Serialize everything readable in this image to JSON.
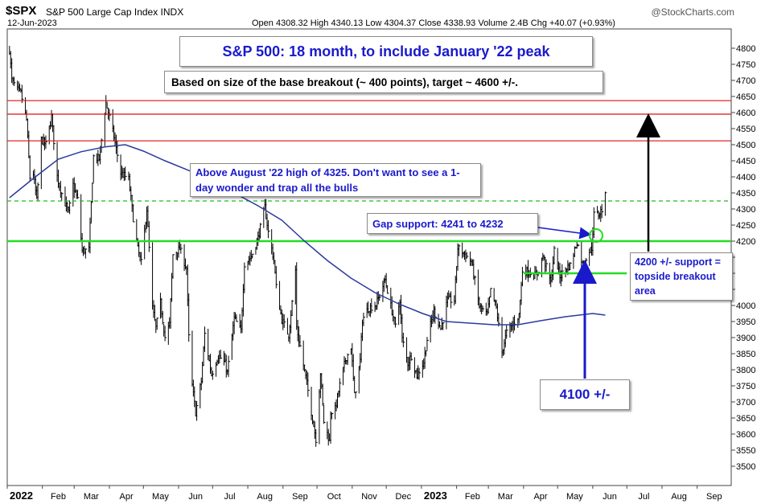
{
  "header": {
    "symbol": "$SPX",
    "name": "S&P 500 Large Cap Index  INDX",
    "date": "12-Jun-2023",
    "ohlc": "Open 4308.32  High 4340.13  Low 4304.37  Close 4338.93  Volume 2.4B  Chg +40.07 (+0.93%)",
    "brand": "@StockCharts.com"
  },
  "annotations": {
    "title": "S&P 500: 18 month, to include January '22 peak",
    "target": "Based on size of the base breakout (~ 400 points), target ~ 4600 +/-.",
    "august": "Above August '22 high of 4325. Don't want to see a 1-day wonder and trap all the bulls",
    "gap": "Gap support: 4241 to 4232",
    "support_4100": "4100 +/-",
    "support_4200": "4200 +/-  support = topside breakout area"
  },
  "colors": {
    "bars": "#000000",
    "moving_average": "#2b3a9e",
    "resistance": "#dd1111",
    "support": "#22dd22",
    "prior_high": "#22bb22",
    "annotation_text": "#1a1acc",
    "arrow_blue": "#1a1acc",
    "arrow_black": "#000000"
  },
  "chart_data": {
    "type": "ohlc",
    "xlabel": "",
    "ylabel": "",
    "ylim": [
      3440,
      4860
    ],
    "yticks": [
      3500,
      3550,
      3600,
      3650,
      3700,
      3750,
      3800,
      3850,
      3900,
      3950,
      4000,
      4050,
      4100,
      4150,
      4200,
      4250,
      4300,
      4350,
      4400,
      4450,
      4500,
      4550,
      4600,
      4650,
      4700,
      4750,
      4800
    ],
    "ytick_labels": [
      "3500",
      "3550",
      "3600",
      "3650",
      "3700",
      "3750",
      "3800",
      "3850",
      "3900",
      "3950",
      "4000",
      "",
      "",
      "",
      "4200",
      "4250",
      "4300",
      "4350",
      "4400",
      "4450",
      "4500",
      "4550",
      "4600",
      "4650",
      "4700",
      "4750",
      "4800"
    ],
    "xtick_labels": [
      "2022",
      "Feb",
      "Mar",
      "Apr",
      "May",
      "Jun",
      "Jul",
      "Aug",
      "Sep",
      "Oct",
      "Nov",
      "Dec",
      "2023",
      "Feb",
      "Mar",
      "Apr",
      "May",
      "Jun",
      "Jul",
      "Aug",
      "Sep"
    ],
    "xtick_bold": [
      "2022",
      "2023"
    ],
    "grid": false,
    "horizontal_lines": [
      {
        "value": 4637,
        "style": "solid",
        "color": "resistance"
      },
      {
        "value": 4595,
        "style": "solid",
        "color": "resistance"
      },
      {
        "value": 4512,
        "style": "solid",
        "color": "resistance"
      },
      {
        "value": 4325,
        "style": "dashed",
        "color": "prior_high"
      },
      {
        "value": 4200,
        "style": "solid",
        "color": "support"
      }
    ],
    "support_segment": {
      "value": 4100,
      "from": "2023-04-01",
      "to": "2023-07-01"
    },
    "series": [
      {
        "type": "close",
        "points": [
          [
            "2022-01-03",
            4796
          ],
          [
            "2022-01-05",
            4700
          ],
          [
            "2022-01-10",
            4670
          ],
          [
            "2022-01-13",
            4660
          ],
          [
            "2022-01-18",
            4577
          ],
          [
            "2022-01-21",
            4398
          ],
          [
            "2022-01-24",
            4410
          ],
          [
            "2022-01-27",
            4326
          ],
          [
            "2022-01-31",
            4516
          ],
          [
            "2022-02-04",
            4500
          ],
          [
            "2022-02-09",
            4587
          ],
          [
            "2022-02-14",
            4401
          ],
          [
            "2022-02-18",
            4348
          ],
          [
            "2022-02-24",
            4288
          ],
          [
            "2022-02-28",
            4374
          ],
          [
            "2022-03-04",
            4329
          ],
          [
            "2022-03-08",
            4170
          ],
          [
            "2022-03-14",
            4173
          ],
          [
            "2022-03-18",
            4463
          ],
          [
            "2022-03-23",
            4456
          ],
          [
            "2022-03-29",
            4631
          ],
          [
            "2022-04-05",
            4525
          ],
          [
            "2022-04-11",
            4412
          ],
          [
            "2022-04-18",
            4392
          ],
          [
            "2022-04-22",
            4272
          ],
          [
            "2022-04-26",
            4175
          ],
          [
            "2022-04-29",
            4132
          ],
          [
            "2022-05-04",
            4300
          ],
          [
            "2022-05-09",
            3991
          ],
          [
            "2022-05-12",
            3930
          ],
          [
            "2022-05-16",
            4008
          ],
          [
            "2022-05-20",
            3901
          ],
          [
            "2022-05-24",
            3941
          ],
          [
            "2022-05-27",
            4158
          ],
          [
            "2022-06-02",
            4176
          ],
          [
            "2022-06-08",
            4115
          ],
          [
            "2022-06-10",
            3901
          ],
          [
            "2022-06-13",
            3750
          ],
          [
            "2022-06-16",
            3667
          ],
          [
            "2022-06-21",
            3765
          ],
          [
            "2022-06-24",
            3911
          ],
          [
            "2022-06-30",
            3785
          ],
          [
            "2022-07-06",
            3845
          ],
          [
            "2022-07-12",
            3819
          ],
          [
            "2022-07-14",
            3791
          ],
          [
            "2022-07-20",
            3960
          ],
          [
            "2022-07-26",
            3921
          ],
          [
            "2022-07-29",
            4130
          ],
          [
            "2022-08-04",
            4152
          ],
          [
            "2022-08-10",
            4210
          ],
          [
            "2022-08-16",
            4305
          ],
          [
            "2022-08-19",
            4228
          ],
          [
            "2022-08-24",
            4141
          ],
          [
            "2022-08-26",
            4057
          ],
          [
            "2022-08-31",
            3955
          ],
          [
            "2022-09-06",
            3908
          ],
          [
            "2022-09-12",
            4110
          ],
          [
            "2022-09-13",
            3932
          ],
          [
            "2022-09-16",
            3873
          ],
          [
            "2022-09-22",
            3757
          ],
          [
            "2022-09-27",
            3647
          ],
          [
            "2022-09-30",
            3585
          ],
          [
            "2022-10-04",
            3791
          ],
          [
            "2022-10-07",
            3639
          ],
          [
            "2022-10-12",
            3577
          ],
          [
            "2022-10-13",
            3669
          ],
          [
            "2022-10-17",
            3677
          ],
          [
            "2022-10-21",
            3752
          ],
          [
            "2022-10-26",
            3831
          ],
          [
            "2022-10-31",
            3872
          ],
          [
            "2022-11-03",
            3719
          ],
          [
            "2022-11-08",
            3828
          ],
          [
            "2022-11-10",
            3956
          ],
          [
            "2022-11-15",
            3991
          ],
          [
            "2022-11-22",
            4003
          ],
          [
            "2022-11-30",
            4080
          ],
          [
            "2022-12-05",
            3998
          ],
          [
            "2022-12-09",
            3934
          ],
          [
            "2022-12-13",
            4019
          ],
          [
            "2022-12-15",
            3895
          ],
          [
            "2022-12-20",
            3821
          ],
          [
            "2022-12-23",
            3844
          ],
          [
            "2022-12-28",
            3783
          ],
          [
            "2023-01-03",
            3824
          ],
          [
            "2023-01-06",
            3895
          ],
          [
            "2023-01-12",
            3983
          ],
          [
            "2023-01-18",
            3928
          ],
          [
            "2023-01-24",
            4016
          ],
          [
            "2023-01-30",
            4017
          ],
          [
            "2023-02-02",
            4179
          ],
          [
            "2023-02-07",
            4164
          ],
          [
            "2023-02-14",
            4136
          ],
          [
            "2023-02-21",
            3997
          ],
          [
            "2023-02-28",
            3970
          ],
          [
            "2023-03-03",
            4045
          ],
          [
            "2023-03-08",
            3992
          ],
          [
            "2023-03-13",
            3855
          ],
          [
            "2023-03-17",
            3916
          ],
          [
            "2023-03-22",
            3937
          ],
          [
            "2023-03-28",
            3971
          ],
          [
            "2023-03-31",
            4109
          ],
          [
            "2023-04-06",
            4105
          ],
          [
            "2023-04-12",
            4091
          ],
          [
            "2023-04-18",
            4154
          ],
          [
            "2023-04-25",
            4071
          ],
          [
            "2023-04-28",
            4169
          ],
          [
            "2023-05-03",
            4090
          ],
          [
            "2023-05-09",
            4119
          ],
          [
            "2023-05-12",
            4124
          ],
          [
            "2023-05-18",
            4198
          ],
          [
            "2023-05-24",
            4115
          ],
          [
            "2023-05-26",
            4151
          ],
          [
            "2023-05-31",
            4179
          ],
          [
            "2023-06-02",
            4282
          ],
          [
            "2023-06-06",
            4283
          ],
          [
            "2023-06-09",
            4298
          ],
          [
            "2023-06-12",
            4339
          ]
        ]
      },
      {
        "type": "moving_average",
        "points": [
          [
            "2022-01-03",
            4335
          ],
          [
            "2022-01-24",
            4395
          ],
          [
            "2022-02-15",
            4455
          ],
          [
            "2022-03-07",
            4478
          ],
          [
            "2022-03-28",
            4493
          ],
          [
            "2022-04-15",
            4500
          ],
          [
            "2022-05-01",
            4480
          ],
          [
            "2022-05-20",
            4450
          ],
          [
            "2022-06-10",
            4420
          ],
          [
            "2022-07-01",
            4385
          ],
          [
            "2022-07-20",
            4350
          ],
          [
            "2022-08-10",
            4310
          ],
          [
            "2022-08-31",
            4265
          ],
          [
            "2022-09-20",
            4200
          ],
          [
            "2022-10-10",
            4140
          ],
          [
            "2022-10-31",
            4085
          ],
          [
            "2022-11-21",
            4040
          ],
          [
            "2022-12-12",
            4005
          ],
          [
            "2023-01-02",
            3975
          ],
          [
            "2023-01-23",
            3950
          ],
          [
            "2023-02-13",
            3945
          ],
          [
            "2023-03-06",
            3940
          ],
          [
            "2023-03-27",
            3940
          ],
          [
            "2023-04-17",
            3953
          ],
          [
            "2023-05-08",
            3965
          ],
          [
            "2023-06-01",
            3975
          ],
          [
            "2023-06-12",
            3970
          ]
        ]
      }
    ]
  }
}
